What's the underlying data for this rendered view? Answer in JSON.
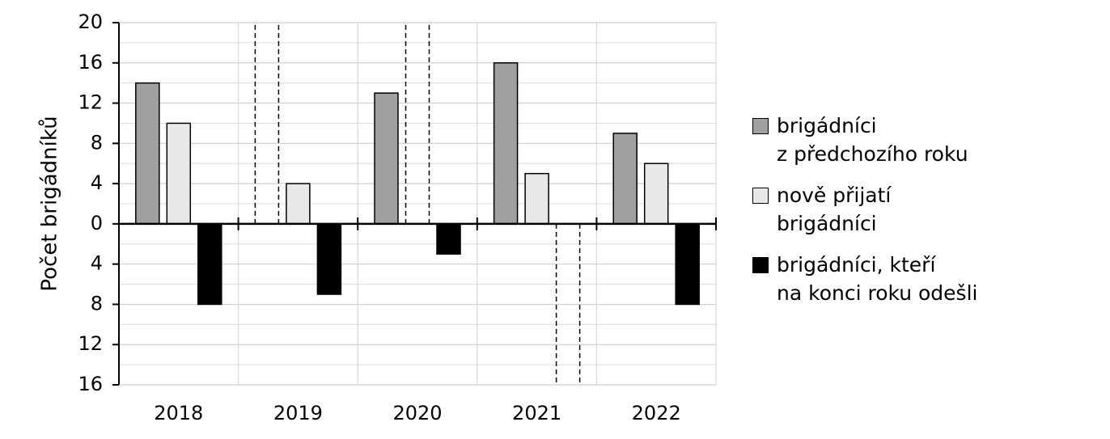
{
  "chart_data": {
    "type": "bar",
    "y_label": "Počet brigádníků",
    "categories": [
      "2018",
      "2019",
      "2020",
      "2021",
      "2022"
    ],
    "series": [
      {
        "name": "brigádníci\nz předchozího roku",
        "color": "#a0a0a0",
        "values": [
          14,
          null,
          13,
          16,
          9
        ]
      },
      {
        "name": "nově přijatí\nbrigádníci",
        "color": "#e8e8e8",
        "values": [
          10,
          4,
          null,
          5,
          6
        ]
      },
      {
        "name": "brigádníci, kteří\nna konci roku odešli",
        "color": "#000000",
        "values": [
          -8,
          -7,
          -3,
          null,
          -8
        ]
      }
    ],
    "ylim": [
      -16,
      20
    ],
    "yticks": [
      20,
      16,
      12,
      8,
      4,
      0,
      {
        "value": -4,
        "label": "4"
      },
      {
        "value": -8,
        "label": "8"
      },
      {
        "value": -12,
        "label": "12"
      },
      {
        "value": -16,
        "label": "16"
      }
    ],
    "grid": true
  }
}
